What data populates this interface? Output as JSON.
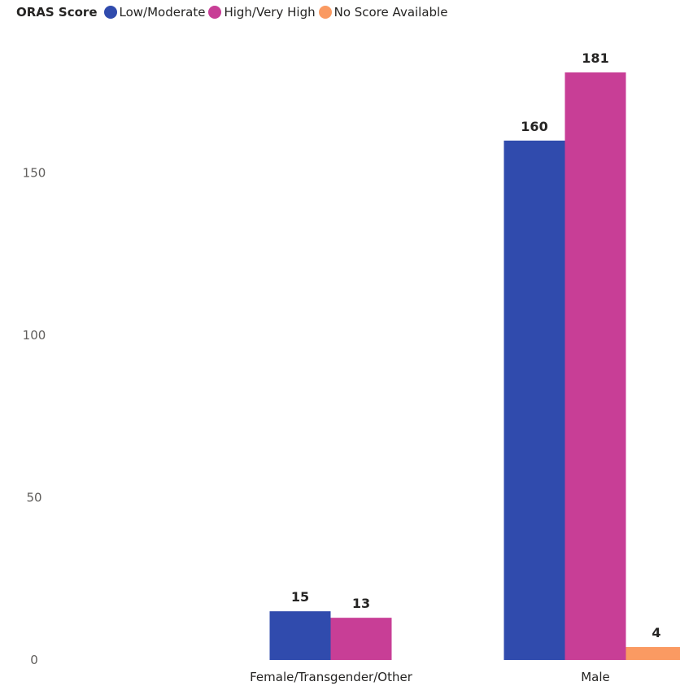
{
  "chart_data": {
    "type": "bar",
    "legend_title": "ORAS Score",
    "legend_position": "top-left",
    "categories": [
      "Female/Transgender/Other",
      "Male"
    ],
    "series": [
      {
        "name": "Low/Moderate",
        "color": "#304BAD",
        "values": [
          15,
          160
        ]
      },
      {
        "name": "High/Very High",
        "color": "#C83E96",
        "values": [
          13,
          181
        ]
      },
      {
        "name": "No Score Available",
        "color": "#FA9A62",
        "values": [
          null,
          4
        ]
      }
    ],
    "y_ticks": [
      "0",
      "50",
      "100",
      "150"
    ],
    "ylim": [
      0,
      181
    ],
    "grid": false
  }
}
